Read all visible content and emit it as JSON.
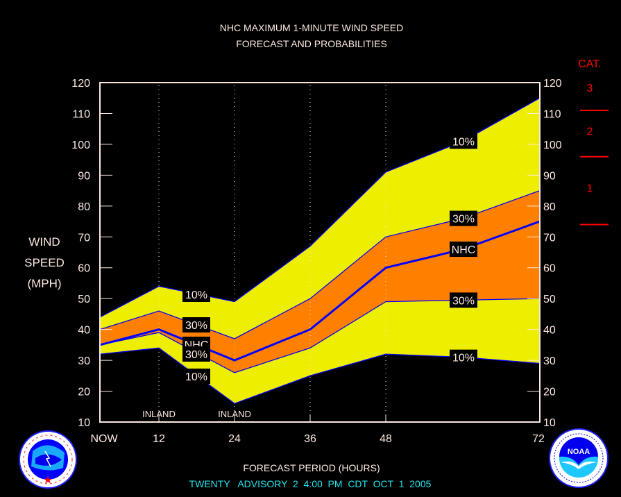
{
  "chart_data": {
    "type": "area",
    "title": "NHC MAXIMUM 1-MINUTE WIND SPEED",
    "subtitle": "FORECAST AND PROBABILITIES",
    "xlabel": "FORECAST PERIOD (HOURS)",
    "ylabel": [
      "WIND",
      "SPEED",
      "(MPH)"
    ],
    "ylim": [
      10,
      120
    ],
    "yticks": [
      10,
      20,
      30,
      40,
      50,
      60,
      70,
      80,
      90,
      100,
      110,
      120
    ],
    "xticks": [
      {
        "hour": 0,
        "label": "NOW"
      },
      {
        "hour": 12,
        "label": "12"
      },
      {
        "hour": 24,
        "label": "24"
      },
      {
        "hour": 36,
        "label": "36"
      },
      {
        "hour": 48,
        "label": "48"
      },
      {
        "hour": 72,
        "label": "72"
      }
    ],
    "x": [
      0,
      12,
      24,
      36,
      48,
      60,
      72
    ],
    "series": [
      {
        "name": "upper 10%",
        "values": [
          44,
          54,
          49,
          67,
          91,
          101,
          115
        ]
      },
      {
        "name": "upper 30%",
        "values": [
          40,
          46,
          37,
          50,
          70,
          76,
          85
        ]
      },
      {
        "name": "NHC",
        "values": [
          35,
          40,
          30,
          40,
          60,
          66,
          75
        ]
      },
      {
        "name": "lower 30%",
        "values": [
          35,
          39,
          26,
          34,
          49,
          49.5,
          50
        ]
      },
      {
        "name": "lower 10%",
        "values": [
          32,
          34,
          16,
          25,
          32,
          31,
          29
        ]
      }
    ],
    "band_colors": {
      "outer": "#eeee00",
      "inner": "#ff7f00",
      "line": "#0000ff"
    },
    "annotations": [
      {
        "text": "INLAND",
        "hour": 12
      },
      {
        "text": "INLAND",
        "hour": 24
      }
    ],
    "series_labels": [
      {
        "text": "10%",
        "series": "upper 10%",
        "near_hour": 18
      },
      {
        "text": "30%",
        "series": "upper 30%",
        "near_hour": 18
      },
      {
        "text": "NHC",
        "series": "NHC",
        "near_hour": 18
      },
      {
        "text": "30%",
        "series": "lower 30%",
        "near_hour": 18
      },
      {
        "text": "10%",
        "series": "lower 10%",
        "near_hour": 18
      },
      {
        "text": "10%",
        "series": "upper 10%",
        "near_hour": 60
      },
      {
        "text": "30%",
        "series": "upper 30%",
        "near_hour": 60
      },
      {
        "text": "NHC",
        "series": "NHC",
        "near_hour": 60
      },
      {
        "text": "30%",
        "series": "lower 30%",
        "near_hour": 60
      },
      {
        "text": "10%",
        "series": "lower 10%",
        "near_hour": 60
      }
    ],
    "categories": {
      "title": "CAT.",
      "color": "#ff0000",
      "thresholds": [
        74,
        96,
        111
      ],
      "labels": [
        {
          "label": "1",
          "mid": 85
        },
        {
          "label": "2",
          "mid": 103.5
        },
        {
          "label": "3",
          "mid": 117.5
        }
      ]
    },
    "grid": false,
    "legend": "none"
  },
  "footer": {
    "advisory": "TWENTY   ADVISORY  2  4:00  PM  CDT  OCT  1  2005"
  },
  "logos": {
    "left": "nws-logo",
    "right": "noaa-logo",
    "noaa_text": "NOAA"
  }
}
